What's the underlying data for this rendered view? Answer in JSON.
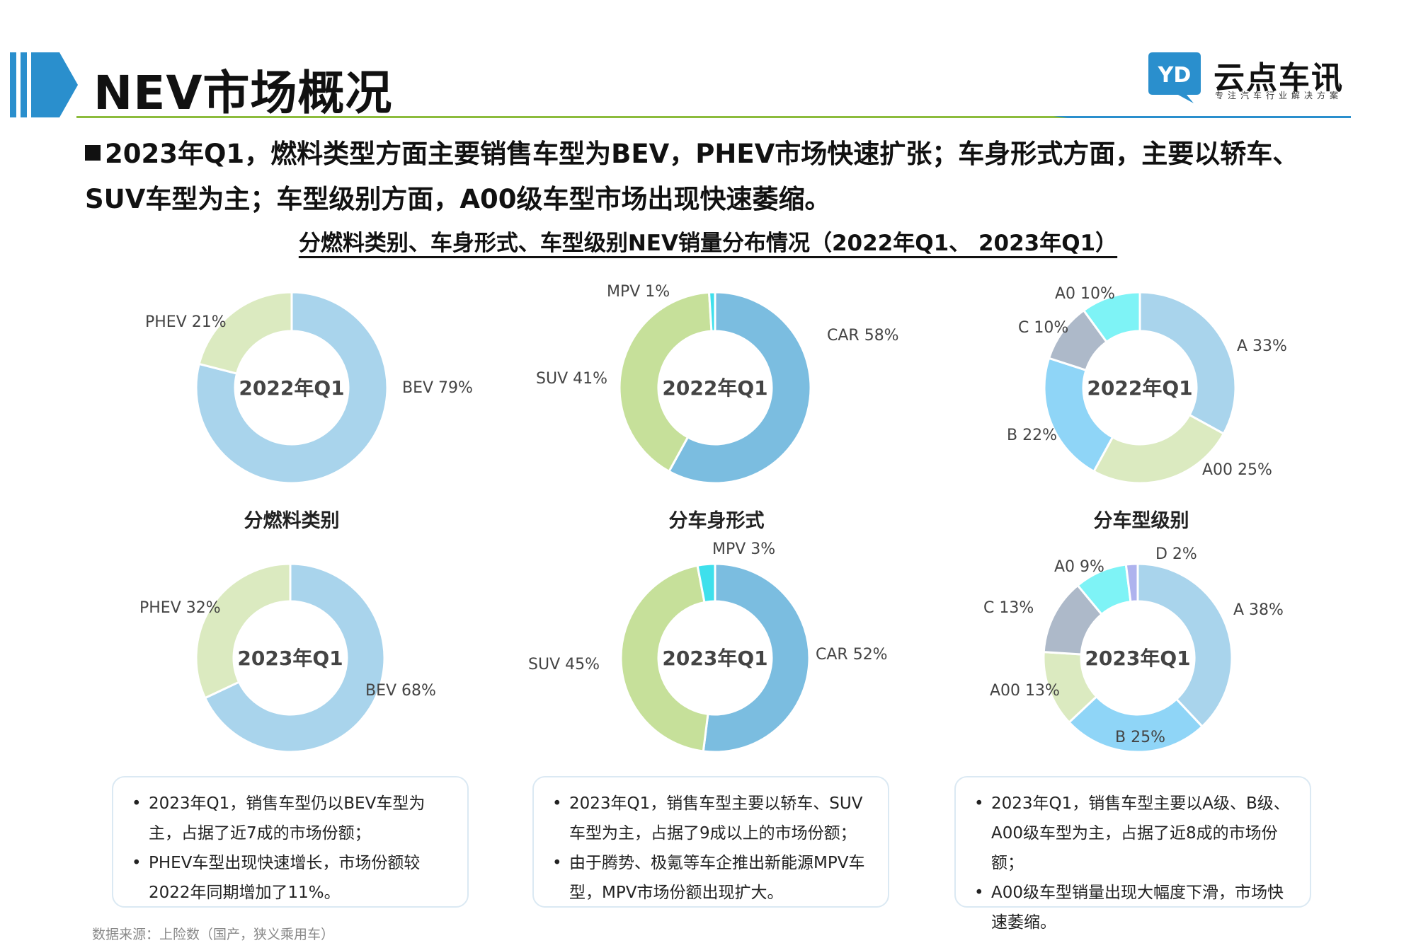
{
  "header": {
    "title": "NEV市场概况",
    "logo_text": "YD",
    "brand_name": "云点车讯",
    "brand_sub": "专注汽车行业解决方案",
    "accent_blue": "#2a8fcd",
    "accent_green": "#8cbc3c"
  },
  "summary": {
    "text": "2023年Q1，燃料类型方面主要销售车型为BEV，PHEV市场快速扩张；车身形式方面，主要以轿车、SUV车型为主；车型级别方面，A00级车型市场出现快速萎缩。"
  },
  "figure_title": "分燃料类别、车身形式、车型级别NEV销量分布情况（2022年Q1、 2023年Q1）",
  "chart_data": [
    {
      "type": "pie",
      "variant": "donut",
      "group": "分燃料类别",
      "center_label": "2022年Q1",
      "slices": [
        {
          "name": "BEV",
          "value": 79,
          "label": "BEV 79%",
          "color": "#a9d4ec"
        },
        {
          "name": "PHEV",
          "value": 21,
          "label": "PHEV  21%",
          "color": "#dbeac0"
        }
      ]
    },
    {
      "type": "pie",
      "variant": "donut",
      "group": "分车身形式",
      "center_label": "2022年Q1",
      "slices": [
        {
          "name": "CAR",
          "value": 58,
          "label": "CAR 58%",
          "color": "#7bbde0"
        },
        {
          "name": "SUV",
          "value": 41,
          "label": "SUV 41%",
          "color": "#c6e09a"
        },
        {
          "name": "MPV",
          "value": 1,
          "label": "MPV 1%",
          "color": "#3ee0ec"
        }
      ]
    },
    {
      "type": "pie",
      "variant": "donut",
      "group": "分车型级别",
      "center_label": "2022年Q1",
      "slices": [
        {
          "name": "A",
          "value": 33,
          "label": "A 33%",
          "color": "#a9d4ec"
        },
        {
          "name": "A00",
          "value": 25,
          "label": "A00 25%",
          "color": "#dbeac0"
        },
        {
          "name": "B",
          "value": 22,
          "label": "B 22%",
          "color": "#8fd5f7"
        },
        {
          "name": "C",
          "value": 10,
          "label": "C 10%",
          "color": "#adb9c9"
        },
        {
          "name": "A0",
          "value": 10,
          "label": "A0 10%",
          "color": "#7ef3f6"
        }
      ]
    },
    {
      "type": "pie",
      "variant": "donut",
      "group": "分燃料类别",
      "center_label": "2023年Q1",
      "slices": [
        {
          "name": "BEV",
          "value": 68,
          "label": "BEV 68%",
          "color": "#a9d4ec"
        },
        {
          "name": "PHEV",
          "value": 32,
          "label": "PHEV  32%",
          "color": "#dbeac0"
        }
      ]
    },
    {
      "type": "pie",
      "variant": "donut",
      "group": "分车身形式",
      "center_label": "2023年Q1",
      "slices": [
        {
          "name": "CAR",
          "value": 52,
          "label": "CAR 52%",
          "color": "#7bbde0"
        },
        {
          "name": "SUV",
          "value": 45,
          "label": "SUV 45%",
          "color": "#c6e09a"
        },
        {
          "name": "MPV",
          "value": 3,
          "label": "MPV 3%",
          "color": "#3ee0ec"
        }
      ]
    },
    {
      "type": "pie",
      "variant": "donut",
      "group": "分车型级别",
      "center_label": "2023年Q1",
      "slices": [
        {
          "name": "A",
          "value": 38,
          "label": "A 38%",
          "color": "#a9d4ec"
        },
        {
          "name": "B",
          "value": 25,
          "label": "B 25%",
          "color": "#8fd5f7"
        },
        {
          "name": "A00",
          "value": 13,
          "label": "A00 13%",
          "color": "#dbeac0"
        },
        {
          "name": "C",
          "value": 13,
          "label": "C 13%",
          "color": "#adb9c9"
        },
        {
          "name": "A0",
          "value": 9,
          "label": "A0 9%",
          "color": "#7ef3f6"
        },
        {
          "name": "D",
          "value": 2,
          "label": "D 2%",
          "color": "#aeb3ee"
        }
      ]
    }
  ],
  "group_titles": [
    "分燃料类别",
    "分车身形式",
    "分车型级别"
  ],
  "notes": [
    [
      "2023年Q1，销售车型仍以BEV车型为主，占据了近7成的市场份额；",
      "PHEV车型出现快速增长，市场份额较2022年同期增加了11%。"
    ],
    [
      "2023年Q1，销售车型主要以轿车、SUV车型为主，占据了9成以上的市场份额；",
      "由于腾势、极氪等车企推出新能源MPV车型，MPV市场份额出现扩大。"
    ],
    [
      "2023年Q1，销售车型主要以A级、B级、A00级车型为主，占据了近8成的市场份额；",
      "A00级车型销量出现大幅度下滑，市场快速萎缩。"
    ]
  ],
  "source": "数据来源：上险数（国产，狭义乘用车）"
}
